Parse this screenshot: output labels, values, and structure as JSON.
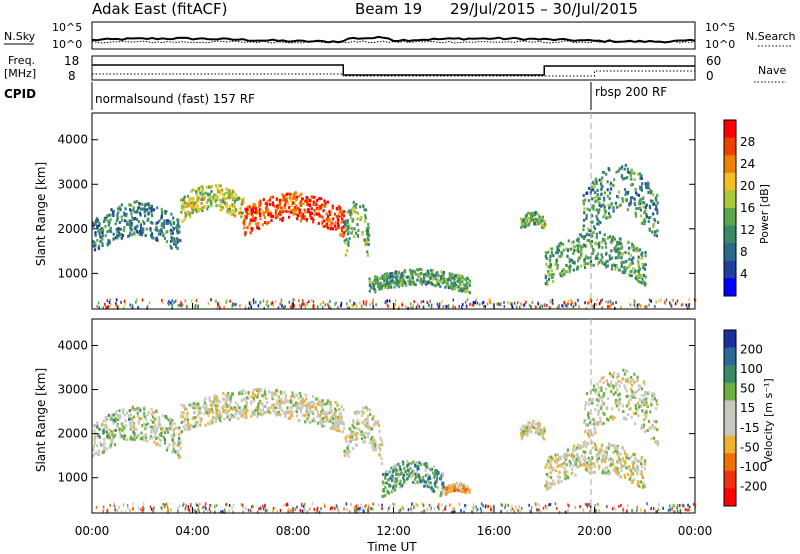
{
  "header": {
    "station": "Adak East (fitACF)",
    "beam": "Beam 19",
    "date_range": "29/Jul/2015 – 30/Jul/2015"
  },
  "strip1": {
    "left_label": "N.Sky",
    "right_label": "N.Search",
    "left_ticks": [
      "10^5",
      "10^0"
    ],
    "right_ticks": [
      "10^5",
      "10^0"
    ]
  },
  "strip2": {
    "left_label_1": "Freq.",
    "left_label_2": "[MHz]",
    "right_label": "Nave",
    "left_ticks": [
      "18",
      "8"
    ],
    "right_ticks": [
      "60",
      "0"
    ]
  },
  "cpid": {
    "label": "CPID",
    "programs": [
      {
        "name": "normalsound (fast) 157 RF",
        "start_hour": 0
      },
      {
        "name": "rbsp 200 RF",
        "start_hour": 20
      }
    ]
  },
  "colors": {
    "power_scale": [
      "#0000ff",
      "#1f3f9f",
      "#2a6a8a",
      "#3a8a6a",
      "#5aa64a",
      "#a8c83a",
      "#f0c020",
      "#f08000",
      "#f04000",
      "#ff0000"
    ],
    "velocity_scale": [
      "#1a2ea0",
      "#2a6a9a",
      "#3a8a6a",
      "#6ab040",
      "#c8c8c0",
      "#c8c8c0",
      "#f0b030",
      "#f07000",
      "#f03010",
      "#ff0000"
    ]
  },
  "chart_data": [
    {
      "type": "heatmap",
      "panel": "power",
      "ylabel": "Slant Range [km]",
      "yticks": [
        "1000",
        "2000",
        "3000",
        "4000"
      ],
      "ylim": [
        200,
        4600
      ],
      "xlim": [
        0,
        24
      ],
      "colorbar_label": "Power [dB]",
      "colorbar_ticks": [
        "4",
        "8",
        "12",
        "16",
        "20",
        "24",
        "28"
      ],
      "echo_regions": [
        {
          "t_start": 0.0,
          "t_end": 3.5,
          "range_start": 1500,
          "range_end": 2600,
          "level": 0.3
        },
        {
          "t_start": 3.5,
          "t_end": 6.0,
          "range_start": 2200,
          "range_end": 3000,
          "level": 0.55
        },
        {
          "t_start": 6.0,
          "t_end": 10.0,
          "range_start": 1900,
          "range_end": 2800,
          "level": 0.85
        },
        {
          "t_start": 10.0,
          "t_end": 11.0,
          "range_start": 1400,
          "range_end": 2700,
          "level": 0.45
        },
        {
          "t_start": 11.0,
          "t_end": 15.0,
          "range_start": 600,
          "range_end": 1100,
          "level": 0.4
        },
        {
          "t_start": 17.0,
          "t_end": 18.0,
          "range_start": 2000,
          "range_end": 2400,
          "level": 0.45
        },
        {
          "t_start": 18.0,
          "t_end": 22.0,
          "range_start": 800,
          "range_end": 1900,
          "level": 0.4
        },
        {
          "t_start": 19.5,
          "t_end": 22.5,
          "range_start": 1800,
          "range_end": 3400,
          "level": 0.35
        }
      ]
    },
    {
      "type": "heatmap",
      "panel": "velocity",
      "ylabel": "Slant Range [km]",
      "yticks": [
        "1000",
        "2000",
        "3000",
        "4000"
      ],
      "ylim": [
        200,
        4600
      ],
      "xlim": [
        0,
        24
      ],
      "xlabel": "Time UT",
      "xticks": [
        "00:00",
        "04:00",
        "08:00",
        "12:00",
        "16:00",
        "20:00",
        "00:00"
      ],
      "colorbar_label": "Velocity [m s⁻¹]",
      "colorbar_ticks": [
        "200",
        "100",
        "50",
        "15",
        "-15",
        "-50",
        "-100",
        "-200"
      ],
      "echo_regions": [
        {
          "t_start": 0.0,
          "t_end": 3.5,
          "range_start": 1500,
          "range_end": 2600,
          "level": 0.45
        },
        {
          "t_start": 3.5,
          "t_end": 10.0,
          "range_start": 2100,
          "range_end": 3000,
          "level": 0.5
        },
        {
          "t_start": 10.0,
          "t_end": 11.5,
          "range_start": 1400,
          "range_end": 2600,
          "level": 0.48
        },
        {
          "t_start": 11.5,
          "t_end": 14.0,
          "range_start": 600,
          "range_end": 1400,
          "level": 0.3
        },
        {
          "t_start": 14.0,
          "t_end": 15.0,
          "range_start": 650,
          "range_end": 900,
          "level": 0.65
        },
        {
          "t_start": 17.0,
          "t_end": 18.0,
          "range_start": 1900,
          "range_end": 2300,
          "level": 0.5
        },
        {
          "t_start": 18.0,
          "t_end": 22.0,
          "range_start": 800,
          "range_end": 1800,
          "level": 0.5
        },
        {
          "t_start": 19.5,
          "t_end": 22.5,
          "range_start": 1800,
          "range_end": 3400,
          "level": 0.48
        }
      ]
    }
  ]
}
